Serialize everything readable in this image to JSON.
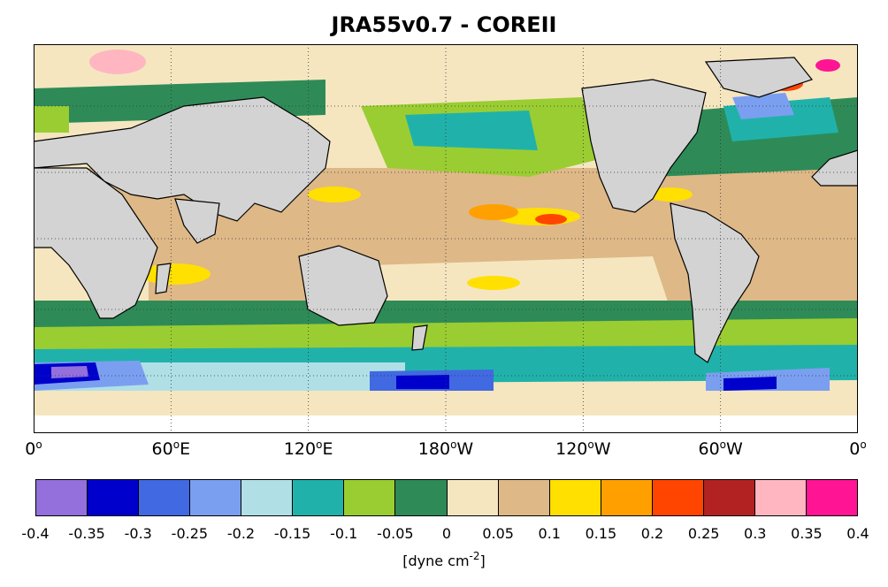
{
  "title": "JRA55v0.7 - COREII",
  "map": {
    "projection": "equirectangular",
    "lon_range": [
      0,
      360
    ],
    "lat_range": [
      -80,
      90
    ],
    "gridlines": "dotted",
    "land_color": "#d3d3d3",
    "coastline_color": "#000000",
    "x_ticks": [
      {
        "value": "0",
        "suffix": ""
      },
      {
        "value": "60",
        "suffix": "E"
      },
      {
        "value": "120",
        "suffix": "E"
      },
      {
        "value": "180",
        "suffix": "W"
      },
      {
        "value": "120",
        "suffix": "W"
      },
      {
        "value": "60",
        "suffix": "W"
      },
      {
        "value": "0",
        "suffix": ""
      }
    ]
  },
  "colorbar": {
    "colors": [
      "#9370db",
      "#0000cd",
      "#4169e1",
      "#7b9ff0",
      "#b0e0e6",
      "#20b2aa",
      "#9acd32",
      "#2e8b57",
      "#f5e6c0",
      "#deb887",
      "#ffe000",
      "#ffa000",
      "#ff4500",
      "#b22222",
      "#ffb6c1",
      "#ff1493"
    ],
    "ticks": [
      "-0.4",
      "-0.35",
      "-0.3",
      "-0.25",
      "-0.2",
      "-0.15",
      "-0.1",
      "-0.05",
      "0",
      "0.05",
      "0.1",
      "0.15",
      "0.2",
      "0.25",
      "0.3",
      "0.35",
      "0.4"
    ],
    "unit_prefix": "[dyne cm",
    "unit_exp": "-2",
    "unit_suffix": "]"
  }
}
